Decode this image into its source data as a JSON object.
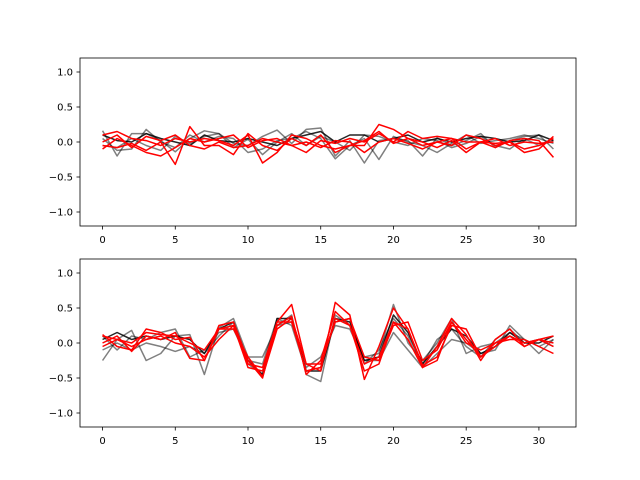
{
  "chart_data": [
    {
      "type": "line",
      "title": "",
      "xlabel": "",
      "ylabel": "",
      "xlim": [
        -1.55,
        32.55
      ],
      "ylim": [
        -1.2,
        1.2
      ],
      "x_ticks": [
        0,
        5,
        10,
        15,
        20,
        25,
        30
      ],
      "y_ticks": [
        -1.0,
        -0.5,
        0.0,
        0.5,
        1.0
      ],
      "x_tick_labels": [
        "0",
        "5",
        "10",
        "15",
        "20",
        "25",
        "30"
      ],
      "y_tick_labels": [
        "−1.0",
        "−0.5",
        "0.0",
        "0.5",
        "1.0"
      ],
      "grid": false,
      "x": [
        0,
        1,
        2,
        3,
        4,
        5,
        6,
        7,
        8,
        9,
        10,
        11,
        12,
        13,
        14,
        15,
        16,
        17,
        18,
        19,
        20,
        21,
        22,
        23,
        24,
        25,
        26,
        27,
        28,
        29,
        30,
        31
      ],
      "series": [
        {
          "color": "#000000",
          "opacity": 0.5,
          "values": [
            0.16,
            -0.2,
            0.12,
            0.12,
            0.02,
            -0.14,
            0.05,
            0.16,
            0.12,
            -0.02,
            -0.05,
            0.08,
            0.17,
            -0.02,
            0.18,
            0.2,
            -0.2,
            0.02,
            -0.3,
            0.02,
            0.05,
            0.02,
            -0.2,
            0.06,
            -0.05,
            0.02,
            0.12,
            -0.08,
            0.02,
            0.08,
            0.1,
            -0.1
          ]
        },
        {
          "color": "#000000",
          "opacity": 0.5,
          "values": [
            0.05,
            -0.12,
            -0.1,
            0.18,
            0.0,
            -0.08,
            0.1,
            0.0,
            0.08,
            0.05,
            -0.15,
            -0.1,
            0.02,
            0.05,
            0.15,
            0.05,
            -0.24,
            -0.05,
            0.05,
            -0.25,
            0.08,
            0.0,
            -0.05,
            -0.15,
            -0.02,
            0.1,
            -0.02,
            0.02,
            0.05,
            0.1,
            0.05,
            -0.02
          ]
        },
        {
          "color": "#000000",
          "opacity": 0.5,
          "values": [
            -0.05,
            -0.08,
            0.05,
            -0.05,
            -0.12,
            0.08,
            -0.02,
            0.08,
            0.12,
            -0.08,
            0.04,
            -0.18,
            0.0,
            0.12,
            -0.05,
            0.08,
            0.0,
            -0.12,
            0.1,
            0.08,
            0.0,
            -0.05,
            0.05,
            0.02,
            -0.08,
            -0.02,
            0.08,
            -0.05,
            -0.1,
            0.05,
            -0.05,
            0.02
          ]
        },
        {
          "color": "#000000",
          "opacity": 0.85,
          "values": [
            0.1,
            0.02,
            0.0,
            0.12,
            0.05,
            0.0,
            -0.05,
            0.1,
            0.02,
            0.0,
            0.05,
            0.0,
            -0.05,
            0.05,
            0.1,
            0.15,
            0.0,
            0.1,
            0.1,
            0.0,
            0.05,
            0.1,
            0.0,
            0.05,
            0.0,
            0.05,
            0.08,
            0.05,
            0.0,
            0.02,
            0.1,
            0.02
          ]
        },
        {
          "color": "#ff0000",
          "opacity": 1,
          "values": [
            0.1,
            0.15,
            0.05,
            0.02,
            -0.05,
            0.05,
            0.0,
            0.05,
            0.02,
            -0.05,
            0.1,
            -0.3,
            -0.15,
            0.1,
            0.05,
            -0.05,
            -0.1,
            -0.05,
            -0.05,
            0.25,
            0.18,
            0.05,
            -0.05,
            0.0,
            -0.05,
            0.1,
            0.05,
            -0.05,
            0.0,
            -0.1,
            -0.05,
            0.05
          ]
        },
        {
          "color": "#ff0000",
          "opacity": 1,
          "values": [
            -0.05,
            -0.08,
            -0.02,
            -0.12,
            0.0,
            -0.32,
            0.22,
            -0.05,
            -0.05,
            -0.18,
            0.12,
            -0.05,
            -0.12,
            0.05,
            -0.05,
            0.1,
            -0.15,
            -0.05,
            0.02,
            0.15,
            -0.02,
            0.05,
            0.0,
            -0.08,
            0.02,
            -0.15,
            0.0,
            -0.08,
            0.02,
            0.05,
            0.02,
            -0.22
          ]
        },
        {
          "color": "#ff0000",
          "opacity": 1,
          "values": [
            -0.1,
            0.05,
            -0.05,
            -0.15,
            -0.2,
            -0.08,
            0.05,
            0.0,
            0.05,
            0.1,
            -0.08,
            0.02,
            0.05,
            -0.05,
            -0.15,
            0.02,
            -0.02,
            0.05,
            0.0,
            0.12,
            0.0,
            0.15,
            0.05,
            0.08,
            0.05,
            0.0,
            0.0,
            -0.02,
            0.0,
            -0.15,
            -0.1,
            0.08
          ]
        },
        {
          "color": "#ff0000",
          "opacity": 1,
          "values": [
            0.0,
            0.1,
            -0.08,
            0.08,
            0.02,
            0.1,
            -0.05,
            -0.1,
            0.0,
            -0.08,
            -0.05,
            0.05,
            0.0,
            -0.05,
            0.0,
            -0.08,
            0.02,
            0.0,
            -0.15,
            0.0,
            0.05,
            -0.02,
            -0.1,
            0.0,
            0.05,
            -0.1,
            0.0,
            0.05,
            -0.05,
            0.0,
            -0.02,
            0.0
          ]
        }
      ]
    },
    {
      "type": "line",
      "title": "",
      "xlabel": "",
      "ylabel": "",
      "xlim": [
        -1.55,
        32.55
      ],
      "ylim": [
        -1.2,
        1.2
      ],
      "x_ticks": [
        0,
        5,
        10,
        15,
        20,
        25,
        30
      ],
      "y_ticks": [
        -1.0,
        -0.5,
        0.0,
        0.5,
        1.0
      ],
      "x_tick_labels": [
        "0",
        "5",
        "10",
        "15",
        "20",
        "25",
        "30"
      ],
      "y_tick_labels": [
        "−1.0",
        "−0.5",
        "0.0",
        "0.5",
        "1.0"
      ],
      "grid": false,
      "x": [
        0,
        1,
        2,
        3,
        4,
        5,
        6,
        7,
        8,
        9,
        10,
        11,
        12,
        13,
        14,
        15,
        16,
        17,
        18,
        19,
        20,
        21,
        22,
        23,
        24,
        25,
        26,
        27,
        28,
        29,
        30,
        31
      ],
      "series": [
        {
          "color": "#000000",
          "opacity": 0.5,
          "values": [
            -0.25,
            0.05,
            0.18,
            -0.25,
            -0.15,
            0.1,
            0.12,
            -0.45,
            0.22,
            0.35,
            -0.2,
            -0.2,
            0.25,
            0.4,
            -0.45,
            -0.55,
            0.4,
            0.25,
            -0.2,
            -0.15,
            0.55,
            0.0,
            -0.25,
            0.0,
            0.35,
            -0.15,
            -0.05,
            0.0,
            0.15,
            0.05,
            -0.15,
            0.05
          ]
        },
        {
          "color": "#000000",
          "opacity": 0.5,
          "values": [
            0.1,
            -0.1,
            0.1,
            0.05,
            0.15,
            0.2,
            -0.2,
            -0.1,
            0.15,
            0.2,
            -0.25,
            -0.3,
            0.35,
            0.25,
            -0.4,
            -0.35,
            0.3,
            0.35,
            -0.3,
            -0.1,
            0.35,
            0.1,
            -0.3,
            0.05,
            0.2,
            -0.05,
            -0.2,
            0.05,
            0.2,
            0.0,
            0.05,
            -0.05
          ]
        },
        {
          "color": "#000000",
          "opacity": 0.5,
          "values": [
            -0.1,
            0.0,
            -0.1,
            0.0,
            -0.05,
            -0.12,
            -0.05,
            -0.15,
            0.1,
            0.3,
            -0.3,
            -0.45,
            0.25,
            0.3,
            -0.35,
            -0.2,
            0.25,
            0.2,
            -0.25,
            -0.25,
            0.15,
            -0.1,
            -0.35,
            -0.15,
            0.05,
            0.0,
            -0.15,
            -0.1,
            0.25,
            0.05,
            -0.05,
            0.05
          ]
        },
        {
          "color": "#000000",
          "opacity": 0.85,
          "values": [
            0.05,
            0.15,
            0.05,
            0.1,
            0.05,
            0.1,
            0.05,
            -0.15,
            0.2,
            0.3,
            -0.25,
            -0.45,
            0.35,
            0.35,
            -0.4,
            -0.4,
            0.35,
            0.3,
            -0.25,
            -0.2,
            0.4,
            0.15,
            -0.3,
            -0.05,
            0.2,
            0.1,
            -0.15,
            -0.05,
            0.15,
            0.0,
            0.0,
            0.1
          ]
        },
        {
          "color": "#ff0000",
          "opacity": 1,
          "values": [
            0.12,
            -0.05,
            -0.1,
            0.2,
            0.15,
            0.05,
            0.08,
            -0.25,
            0.25,
            0.3,
            -0.25,
            -0.5,
            0.3,
            0.55,
            -0.3,
            -0.4,
            0.58,
            0.4,
            -0.52,
            -0.05,
            0.5,
            0.2,
            -0.35,
            -0.05,
            0.35,
            0.12,
            -0.25,
            0.05,
            0.2,
            -0.05,
            0.05,
            0.0
          ]
        },
        {
          "color": "#ff0000",
          "opacity": 1,
          "values": [
            0.0,
            0.1,
            -0.12,
            0.1,
            0.05,
            0.15,
            -0.22,
            -0.25,
            0.2,
            0.25,
            -0.35,
            -0.4,
            0.25,
            0.38,
            -0.45,
            -0.25,
            0.45,
            0.25,
            -0.3,
            -0.2,
            0.3,
            0.2,
            -0.32,
            -0.2,
            0.25,
            0.2,
            -0.2,
            0.0,
            0.05,
            0.05,
            -0.05,
            -0.15
          ]
        },
        {
          "color": "#ff0000",
          "opacity": 1,
          "values": [
            -0.05,
            0.05,
            -0.05,
            0.05,
            0.1,
            0.0,
            -0.05,
            -0.2,
            0.05,
            0.25,
            -0.3,
            -0.35,
            0.3,
            0.3,
            -0.4,
            -0.35,
            0.35,
            0.25,
            -0.4,
            -0.3,
            0.3,
            0.05,
            -0.35,
            -0.25,
            0.3,
            0.0,
            -0.1,
            0.0,
            0.1,
            -0.05,
            0.05,
            -0.05
          ]
        },
        {
          "color": "#ff0000",
          "opacity": 1,
          "values": [
            0.1,
            0.05,
            0.0,
            0.15,
            0.12,
            0.1,
            0.0,
            -0.1,
            0.2,
            0.2,
            -0.2,
            -0.48,
            0.2,
            0.35,
            -0.3,
            -0.3,
            0.3,
            0.35,
            -0.2,
            -0.25,
            0.25,
            0.3,
            -0.25,
            -0.1,
            0.3,
            0.05,
            -0.2,
            -0.05,
            0.1,
            0.0,
            0.05,
            0.1
          ]
        }
      ]
    }
  ]
}
